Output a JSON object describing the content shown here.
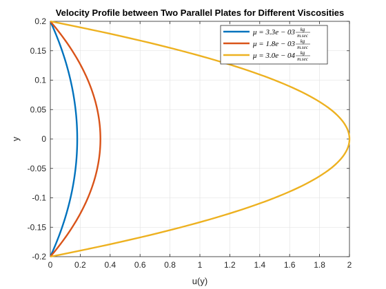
{
  "chart_data": {
    "type": "line",
    "title": "Velocity Profile between Two Parallel Plates for Different Viscosities",
    "xlabel": "u(y)",
    "ylabel": "y",
    "xlim": [
      0,
      2
    ],
    "ylim": [
      -0.2,
      0.2
    ],
    "grid": true,
    "legend_position": "top-right",
    "x_ticks": [
      "0",
      "0.2",
      "0.4",
      "0.6",
      "0.8",
      "1",
      "1.2",
      "1.4",
      "1.6",
      "1.8",
      "2"
    ],
    "y_ticks": [
      "-0.2",
      "-0.15",
      "-0.1",
      "-0.05",
      "0",
      "0.05",
      "0.1",
      "0.15",
      "0.2"
    ],
    "y": [
      -0.2,
      -0.18,
      -0.16,
      -0.14,
      -0.12,
      -0.1,
      -0.08,
      -0.06,
      -0.04,
      -0.02,
      0,
      0.02,
      0.04,
      0.06,
      0.08,
      0.1,
      0.12,
      0.14,
      0.16,
      0.18,
      0.2
    ],
    "series": [
      {
        "legend_prefix": "μ = 3.3e − 03",
        "unit_num": "kg",
        "unit_den": "m.sec",
        "color": "#0072BD",
        "u_max": 0.18,
        "x": [
          0,
          0.0342,
          0.0648,
          0.0918,
          0.1152,
          0.135,
          0.1512,
          0.1638,
          0.1728,
          0.1782,
          0.18,
          0.1782,
          0.1728,
          0.1638,
          0.1512,
          0.135,
          0.1152,
          0.0918,
          0.0648,
          0.0342,
          0
        ]
      },
      {
        "legend_prefix": "μ = 1.8e − 03",
        "unit_num": "kg",
        "unit_den": "m.sec",
        "color": "#D95319",
        "u_max": 0.335,
        "x": [
          0,
          0.0637,
          0.1206,
          0.1709,
          0.2144,
          0.2513,
          0.2814,
          0.3049,
          0.3216,
          0.3317,
          0.335,
          0.3317,
          0.3216,
          0.3049,
          0.2814,
          0.2513,
          0.2144,
          0.1709,
          0.1206,
          0.0637,
          0
        ]
      },
      {
        "legend_prefix": "μ = 3.0e − 04",
        "unit_num": "kg",
        "unit_den": "m.sec",
        "color": "#EDB120",
        "u_max": 2.0,
        "x": [
          0,
          0.38,
          0.72,
          1.02,
          1.28,
          1.5,
          1.68,
          1.82,
          1.92,
          1.98,
          2.0,
          1.98,
          1.92,
          1.82,
          1.68,
          1.5,
          1.28,
          1.02,
          0.72,
          0.38,
          0
        ]
      }
    ]
  }
}
